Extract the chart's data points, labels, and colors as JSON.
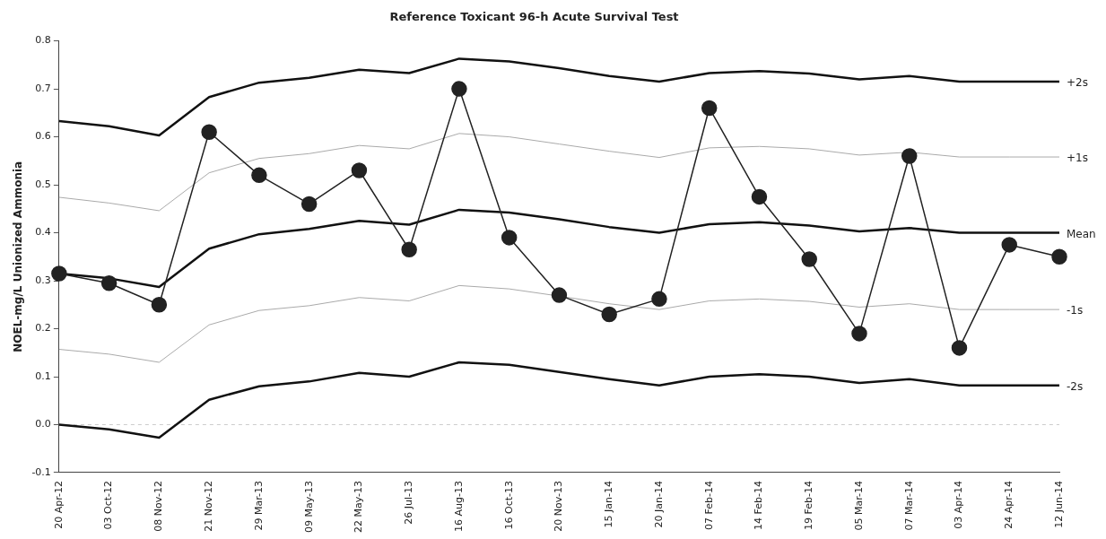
{
  "chart_data": {
    "type": "line",
    "title": "Reference Toxicant 96-h Acute Survival Test",
    "ylabel": "NOEL-mg/L Unionized Ammonia",
    "categories": [
      "20 Apr-12",
      "03 Oct-12",
      "08 Nov-12",
      "21 Nov-12",
      "29 Mar-13",
      "09 May-13",
      "22 May-13",
      "26 Jul-13",
      "16 Aug-13",
      "16 Oct-13",
      "20 Nov-13",
      "15 Jan-14",
      "20 Jan-14",
      "07 Feb-14",
      "14 Feb-14",
      "19 Feb-14",
      "05 Mar-14",
      "07 Mar-14",
      "03 Apr-14",
      "24 Apr-14",
      "12 Jun-14"
    ],
    "series": [
      {
        "name": "+2s",
        "color": "#111111",
        "marker": "none",
        "values": [
          0.633,
          0.622,
          0.603,
          0.683,
          0.713,
          0.723,
          0.74,
          0.733,
          0.763,
          0.757,
          0.743,
          0.727,
          0.715,
          0.733,
          0.737,
          0.732,
          0.72,
          0.727,
          0.715,
          0.715,
          0.715
        ]
      },
      {
        "name": "+1s",
        "color": "#aaaaaa",
        "marker": "none",
        "values": [
          0.474,
          0.462,
          0.446,
          0.525,
          0.555,
          0.565,
          0.582,
          0.575,
          0.607,
          0.6,
          0.585,
          0.57,
          0.557,
          0.577,
          0.58,
          0.575,
          0.562,
          0.568,
          0.558,
          0.558,
          0.558
        ]
      },
      {
        "name": "Mean",
        "color": "#111111",
        "marker": "none",
        "values": [
          0.315,
          0.305,
          0.287,
          0.367,
          0.397,
          0.408,
          0.425,
          0.417,
          0.448,
          0.442,
          0.428,
          0.412,
          0.4,
          0.418,
          0.422,
          0.415,
          0.403,
          0.41,
          0.4,
          0.4,
          0.4
        ]
      },
      {
        "name": "-1s",
        "color": "#aaaaaa",
        "marker": "none",
        "values": [
          0.157,
          0.147,
          0.13,
          0.208,
          0.238,
          0.248,
          0.265,
          0.258,
          0.29,
          0.283,
          0.268,
          0.252,
          0.24,
          0.258,
          0.262,
          0.257,
          0.245,
          0.252,
          0.24,
          0.24,
          0.24
        ]
      },
      {
        "name": "-2s",
        "color": "#111111",
        "marker": "none",
        "values": [
          0.0,
          -0.01,
          -0.027,
          0.052,
          0.08,
          0.09,
          0.108,
          0.1,
          0.13,
          0.125,
          0.11,
          0.095,
          0.082,
          0.1,
          0.105,
          0.1,
          0.087,
          0.095,
          0.082,
          0.082,
          0.082
        ]
      },
      {
        "color": "#222222",
        "marker": "circle",
        "values": [
          0.315,
          0.295,
          0.25,
          0.61,
          0.52,
          0.46,
          0.53,
          0.365,
          0.7,
          0.39,
          0.27,
          0.23,
          0.262,
          0.66,
          0.475,
          0.345,
          0.19,
          0.56,
          0.16,
          0.375,
          0.35
        ]
      }
    ],
    "ylim": [
      -0.1,
      0.8
    ],
    "yticks": [
      {
        "value": -0.1,
        "label": "-0.1"
      },
      {
        "value": 0,
        "label": "0.0"
      },
      {
        "value": 0.1,
        "label": "0.1"
      },
      {
        "value": 0.2,
        "label": "0.2"
      },
      {
        "value": 0.3,
        "label": "0.3"
      },
      {
        "value": 0.4,
        "label": "0.4"
      },
      {
        "value": 0.5,
        "label": "0.5"
      },
      {
        "value": 0.6,
        "label": "0.6"
      },
      {
        "value": 0.7,
        "label": "0.7"
      },
      {
        "value": 0.8,
        "label": "0.8"
      }
    ],
    "ref_lines": [
      {
        "axis": "y",
        "value": 0,
        "color": "#cccccc",
        "line_style": "dashed"
      }
    ],
    "grid": false,
    "legend": false
  }
}
